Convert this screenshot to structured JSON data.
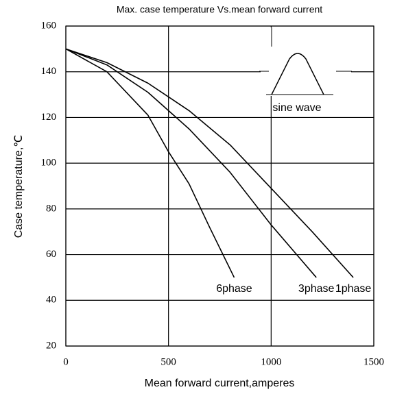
{
  "chart_data": {
    "type": "line",
    "title": "Max. case temperature Vs.mean forward current",
    "x_label": "Mean forward  current,amperes",
    "y_label": "Case temperature,℃",
    "xlim": [
      0,
      1500
    ],
    "xticks": [
      0,
      500,
      1000,
      1500
    ],
    "ylim": [
      20,
      160
    ],
    "yticks": [
      20,
      40,
      60,
      80,
      100,
      120,
      140,
      160
    ],
    "grid": true,
    "inset_label": "sine wave",
    "series": [
      {
        "name": "1phase",
        "color": "#000000",
        "x": [
          0,
          200,
          400,
          600,
          800,
          1000,
          1200,
          1400
        ],
        "values": [
          150,
          144,
          135,
          123,
          108,
          89,
          70,
          50
        ]
      },
      {
        "name": "3phase",
        "color": "#000000",
        "x": [
          0,
          200,
          400,
          600,
          800,
          1000,
          1220
        ],
        "values": [
          150,
          143,
          131,
          115,
          96,
          73,
          50
        ]
      },
      {
        "name": "6phase",
        "color": "#000000",
        "x": [
          0,
          200,
          400,
          500,
          600,
          700,
          820
        ],
        "values": [
          150,
          140,
          121,
          105,
          91,
          72,
          50
        ]
      }
    ]
  }
}
